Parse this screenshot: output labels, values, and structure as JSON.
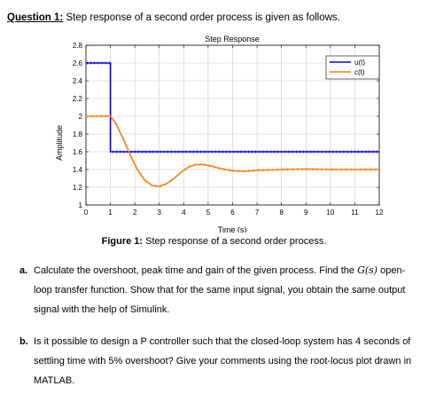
{
  "question": {
    "label": "Question 1:",
    "text": "Step response of a second order process is given as follows."
  },
  "chart_data": {
    "type": "line",
    "title": "Step Response",
    "xlabel": "Time (s)",
    "ylabel": "Amplitude",
    "xlim": [
      0,
      12
    ],
    "ylim": [
      1,
      2.8
    ],
    "grid": true,
    "legend_position": "top-right",
    "x_ticks": [
      "0",
      "1",
      "2",
      "3",
      "4",
      "5",
      "6",
      "7",
      "8",
      "9",
      "10",
      "11",
      "12"
    ],
    "y_ticks": [
      "1",
      "1.2",
      "1.4",
      "1.6",
      "1.8",
      "2",
      "2.2",
      "2.4",
      "2.6",
      "2.8"
    ],
    "series": [
      {
        "name": "u(t)",
        "color": "#0000e6",
        "x": [
          0,
          1,
          1,
          12
        ],
        "y": [
          2.6,
          2.6,
          1.6,
          1.6
        ]
      },
      {
        "name": "c(t)",
        "color": "#ff7f0e",
        "x": [
          0,
          1,
          1.2,
          1.5,
          1.8,
          2.1,
          2.4,
          2.7,
          3.0,
          3.3,
          3.6,
          3.9,
          4.2,
          4.5,
          4.8,
          5.1,
          5.5,
          6.0,
          6.5,
          7.0,
          8.0,
          9.0,
          10.0,
          11.0,
          12.0
        ],
        "y": [
          2.0,
          2.0,
          1.93,
          1.76,
          1.57,
          1.4,
          1.28,
          1.22,
          1.21,
          1.24,
          1.3,
          1.37,
          1.43,
          1.455,
          1.455,
          1.44,
          1.41,
          1.385,
          1.38,
          1.39,
          1.4,
          1.405,
          1.4,
          1.4,
          1.4
        ]
      }
    ]
  },
  "caption": {
    "label": "Figure 1:",
    "text": "Step response of a second order process."
  },
  "items": {
    "a": {
      "marker": "a.",
      "before_g": "Calculate the overshoot, peak time and gain of the given process. Find the",
      "g_symbol": "G(s)",
      "after_g": "open-loop transfer function. Show that for the same input signal, you obtain the same output signal with the help of Simulink."
    },
    "b": {
      "marker": "b.",
      "text": "Is it possible to design a P controller such that the closed-loop system has 4 seconds of settling time with 5% overshoot? Give your comments using the root-locus plot drawn in MATLAB."
    }
  }
}
